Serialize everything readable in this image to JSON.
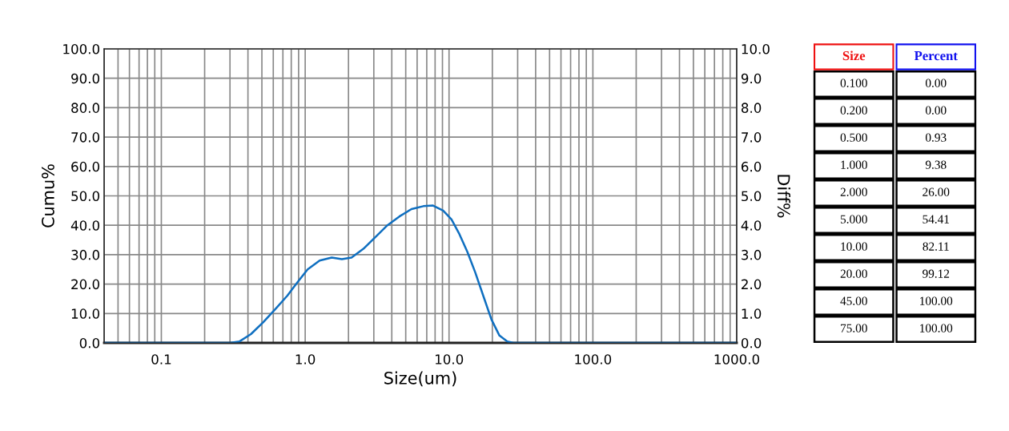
{
  "chart_data": [
    {
      "type": "line",
      "xlabel": "Size(um)",
      "ylabel": "Cumu%",
      "y2label": "Diff%",
      "log": "x",
      "grid": true,
      "tick_labels": [
        "x",
        "y",
        "y2"
      ],
      "xlim": [
        0.04,
        1000
      ],
      "xticks": [
        {
          "value": 0.04,
          "label": null
        },
        {
          "value": 0.05,
          "label": null
        },
        {
          "value": 0.06,
          "label": null
        },
        {
          "value": 0.07,
          "label": null
        },
        {
          "value": 0.08,
          "label": null
        },
        {
          "value": 0.09,
          "label": null
        },
        0.1,
        {
          "value": 0.2,
          "label": null
        },
        {
          "value": 0.3,
          "label": null
        },
        {
          "value": 0.4,
          "label": null
        },
        {
          "value": 0.5,
          "label": null
        },
        {
          "value": 0.6,
          "label": null
        },
        {
          "value": 0.7,
          "label": null
        },
        {
          "value": 0.8,
          "label": null
        },
        {
          "value": 0.9,
          "label": null
        },
        {
          "value": 1,
          "label": "1.0"
        },
        {
          "value": 2,
          "label": null
        },
        {
          "value": 3,
          "label": null
        },
        {
          "value": 4,
          "label": null
        },
        {
          "value": 5,
          "label": null
        },
        {
          "value": 6,
          "label": null
        },
        {
          "value": 7,
          "label": null
        },
        {
          "value": 8,
          "label": null
        },
        {
          "value": 9,
          "label": null
        },
        {
          "value": 10,
          "label": "10.0"
        },
        {
          "value": 20,
          "label": null
        },
        {
          "value": 30,
          "label": null
        },
        {
          "value": 40,
          "label": null
        },
        {
          "value": 50,
          "label": null
        },
        {
          "value": 60,
          "label": null
        },
        {
          "value": 70,
          "label": null
        },
        {
          "value": 80,
          "label": null
        },
        {
          "value": 90,
          "label": null
        },
        {
          "value": 100,
          "label": "100.0"
        },
        {
          "value": 200,
          "label": null
        },
        {
          "value": 300,
          "label": null
        },
        {
          "value": 400,
          "label": null
        },
        {
          "value": 500,
          "label": null
        },
        {
          "value": 600,
          "label": null
        },
        {
          "value": 700,
          "label": null
        },
        {
          "value": 800,
          "label": null
        },
        {
          "value": 900,
          "label": null
        },
        {
          "value": 1000,
          "label": "1000.0"
        }
      ],
      "ylim": [
        0,
        100
      ],
      "yticks": [
        {
          "value": 0,
          "label": "0.0"
        },
        {
          "value": 10,
          "label": "10.0"
        },
        {
          "value": 20,
          "label": "20.0"
        },
        {
          "value": 30,
          "label": "30.0"
        },
        {
          "value": 40,
          "label": "40.0"
        },
        {
          "value": 50,
          "label": "50.0"
        },
        {
          "value": 60,
          "label": "60.0"
        },
        {
          "value": 70,
          "label": "70.0"
        },
        {
          "value": 80,
          "label": "80.0"
        },
        {
          "value": 90,
          "label": "90.0"
        },
        {
          "value": 100,
          "label": "100.0"
        }
      ],
      "y2lim": [
        0,
        10
      ],
      "y2ticks": [
        {
          "value": 0,
          "label": "0.0"
        },
        {
          "value": 1,
          "label": "1.0"
        },
        {
          "value": 2,
          "label": "2.0"
        },
        {
          "value": 3,
          "label": "3.0"
        },
        {
          "value": 4,
          "label": "4.0"
        },
        {
          "value": 5,
          "label": "5.0"
        },
        {
          "value": 6,
          "label": "6.0"
        },
        {
          "value": 7,
          "label": "7.0"
        },
        {
          "value": 8,
          "label": "8.0"
        },
        {
          "value": 9,
          "label": "9.0"
        },
        {
          "value": 10,
          "label": "10.0"
        }
      ],
      "series": [
        {
          "axis": "y2",
          "color": "#0f6fc0",
          "x": [
            0.04,
            0.3,
            0.35,
            0.42,
            0.51,
            0.62,
            0.75,
            0.88,
            1.04,
            1.26,
            1.53,
            1.8,
            2.1,
            2.54,
            3.08,
            3.73,
            4.52,
            5.48,
            6.63,
            7.74,
            9.1,
            10.4,
            11.8,
            13.4,
            15.2,
            17.3,
            19.7,
            22.4,
            25.4,
            28,
            1000
          ],
          "values": [
            0,
            0,
            0.05,
            0.3,
            0.7,
            1.15,
            1.6,
            2.05,
            2.5,
            2.8,
            2.9,
            2.85,
            2.9,
            3.2,
            3.6,
            4.0,
            4.3,
            4.55,
            4.65,
            4.67,
            4.5,
            4.2,
            3.7,
            3.1,
            2.4,
            1.6,
            0.8,
            0.25,
            0.05,
            0,
            0
          ]
        }
      ]
    },
    {
      "type": "other",
      "xlabel": "Size",
      "ylabel": "Percent",
      "categories": [
        "0.100",
        "0.200",
        "0.500",
        "1.000",
        "2.000",
        "5.000",
        "10.00",
        "20.00",
        "45.00",
        "75.00"
      ],
      "value_labels": [
        "0.00",
        "0.00",
        "0.93",
        "9.38",
        "26.00",
        "54.41",
        "82.11",
        "99.12",
        "100.00",
        "100.00"
      ]
    }
  ]
}
